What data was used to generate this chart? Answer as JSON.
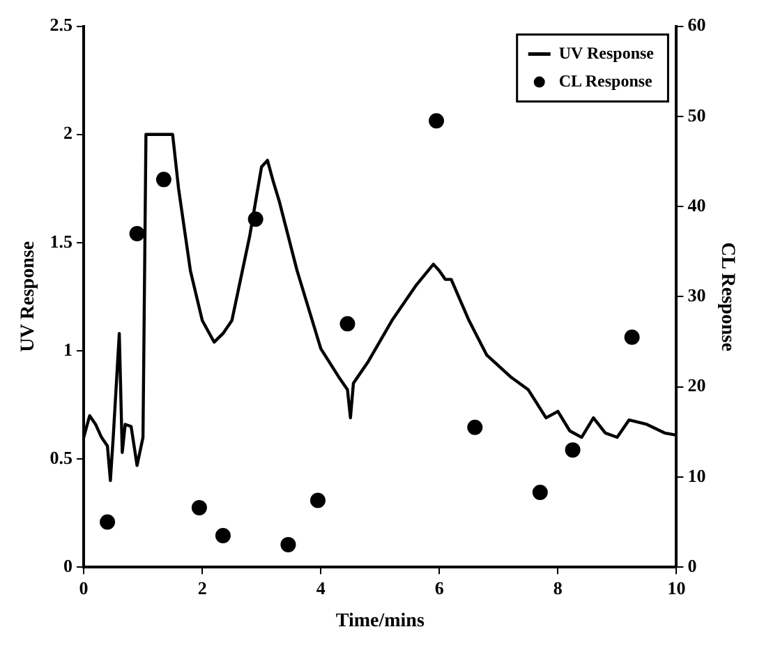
{
  "chart_data": {
    "type": "line",
    "xlabel": "Time/mins",
    "ylabel": "UV Response",
    "y2label": "CL Response",
    "xlim": [
      0,
      10
    ],
    "xticks": [
      0,
      2,
      4,
      6,
      8,
      10
    ],
    "ylim": [
      0,
      2.5
    ],
    "yticks": [
      0,
      0.5,
      1,
      1.5,
      2,
      2.5
    ],
    "y2lim": [
      0,
      60
    ],
    "y2ticks": [
      0,
      10,
      20,
      30,
      40,
      50,
      60
    ],
    "grid": false,
    "legend": "top right",
    "series": [
      {
        "name": "UV Response",
        "color": "#000000",
        "marker": "none",
        "x": [
          0,
          0.1,
          0.2,
          0.3,
          0.4,
          0.45,
          0.5,
          0.6,
          0.65,
          0.7,
          0.8,
          0.9,
          1.0,
          1.05,
          1.5,
          1.6,
          1.8,
          2.0,
          2.2,
          2.35,
          2.5,
          2.8,
          3.0,
          3.1,
          3.2,
          3.3,
          3.6,
          4.0,
          4.3,
          4.45,
          4.5,
          4.55,
          4.8,
          5.2,
          5.6,
          5.9,
          6.0,
          6.1,
          6.2,
          6.5,
          6.8,
          7.2,
          7.5,
          7.8,
          8.0,
          8.2,
          8.4,
          8.6,
          8.8,
          9.0,
          9.2,
          9.5,
          9.8,
          10
        ],
        "values": [
          0.6,
          0.7,
          0.66,
          0.6,
          0.56,
          0.4,
          0.61,
          1.08,
          0.53,
          0.66,
          0.65,
          0.47,
          0.6,
          2.0,
          2.0,
          1.75,
          1.37,
          1.14,
          1.04,
          1.08,
          1.14,
          1.53,
          1.85,
          1.88,
          1.78,
          1.69,
          1.37,
          1.01,
          0.88,
          0.82,
          0.69,
          0.85,
          0.95,
          1.14,
          1.3,
          1.4,
          1.37,
          1.33,
          1.33,
          1.14,
          0.98,
          0.88,
          0.82,
          0.69,
          0.72,
          0.63,
          0.6,
          0.69,
          0.62,
          0.6,
          0.68,
          0.66,
          0.62,
          0.61
        ]
      },
      {
        "name": "CL Response",
        "type": "scatter",
        "axis": "y2",
        "color": "#000000",
        "marker": "circle",
        "x": [
          0.4,
          0.9,
          1.35,
          1.95,
          2.35,
          2.9,
          3.45,
          3.95,
          4.45,
          5.95,
          6.6,
          7.7,
          8.25,
          9.25
        ],
        "values": [
          5,
          37,
          43,
          6.6,
          3.5,
          38.6,
          2.5,
          7.4,
          27,
          49.5,
          15.5,
          8.3,
          13,
          25.5
        ]
      }
    ]
  }
}
